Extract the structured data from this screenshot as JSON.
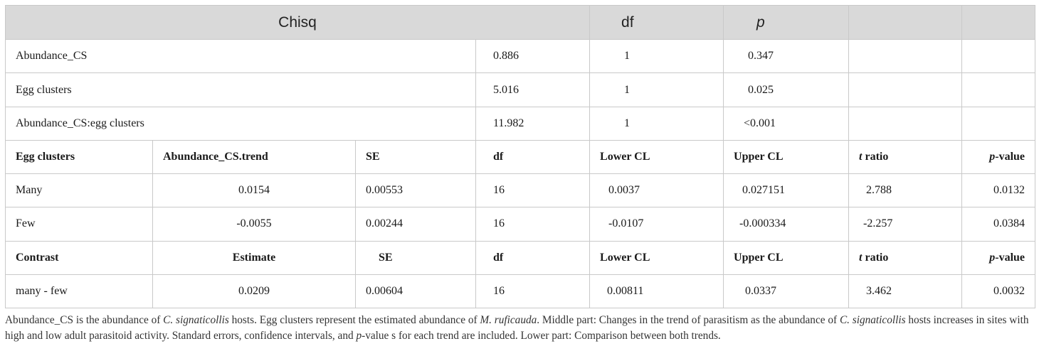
{
  "anova": {
    "headers": {
      "chisq": "Chisq",
      "df": "df",
      "p": "p"
    },
    "rows": [
      {
        "term": "Abundance_CS",
        "chisq": "0.886",
        "df": "1",
        "p": "0.347"
      },
      {
        "term": "Egg clusters",
        "chisq": "5.016",
        "df": "1",
        "p": "0.025"
      },
      {
        "term": "Abundance_CS:egg clusters",
        "chisq": "11.982",
        "df": "1",
        "p": "<0.001"
      }
    ]
  },
  "trends": {
    "headers": {
      "group": "Egg clusters",
      "trend": "Abundance_CS.trend",
      "se": "SE",
      "df": "df",
      "lower": "Lower CL",
      "upper": "Upper CL",
      "t_italic": "t",
      "t_rest": " ratio",
      "p_italic": "p",
      "p_rest": "-value"
    },
    "rows": [
      {
        "group": "Many",
        "trend": "0.0154",
        "se": "0.00553",
        "df": "16",
        "lower": "0.0037",
        "upper": "0.027151",
        "t": "2.788",
        "p": "0.0132"
      },
      {
        "group": "Few",
        "trend": "-0.0055",
        "se": "0.00244",
        "df": "16",
        "lower": "-0.0107",
        "upper": "-0.000334",
        "t": "-2.257",
        "p": "0.0384"
      }
    ]
  },
  "contrast": {
    "headers": {
      "contrast": "Contrast",
      "estimate": "Estimate",
      "se": "SE",
      "df": "df",
      "lower": "Lower CL",
      "upper": "Upper CL",
      "t_italic": "t",
      "t_rest": " ratio",
      "p_italic": "p",
      "p_rest": "-value"
    },
    "rows": [
      {
        "contrast": "many - few",
        "estimate": "0.0209",
        "se": "0.00604",
        "df": "16",
        "lower": "0.00811",
        "upper": "0.0337",
        "t": "3.462",
        "p": "0.0032"
      }
    ]
  },
  "caption": {
    "s1": "Abundance_CS is the abundance of ",
    "i1": "C. signaticollis",
    "s2": " hosts. Egg clusters represent the estimated abundance of ",
    "i2": "M. ruficauda",
    "s3": ". Middle part: Changes in the trend of parasitism as the abundance of ",
    "i3": "C. signaticollis",
    "s4": " hosts increases in sites with high and low adult parasitoid activity. Standard errors, confidence intervals, and ",
    "i4": "p",
    "s5": "-value s for each trend are included. Lower part: Comparison between both trends."
  }
}
